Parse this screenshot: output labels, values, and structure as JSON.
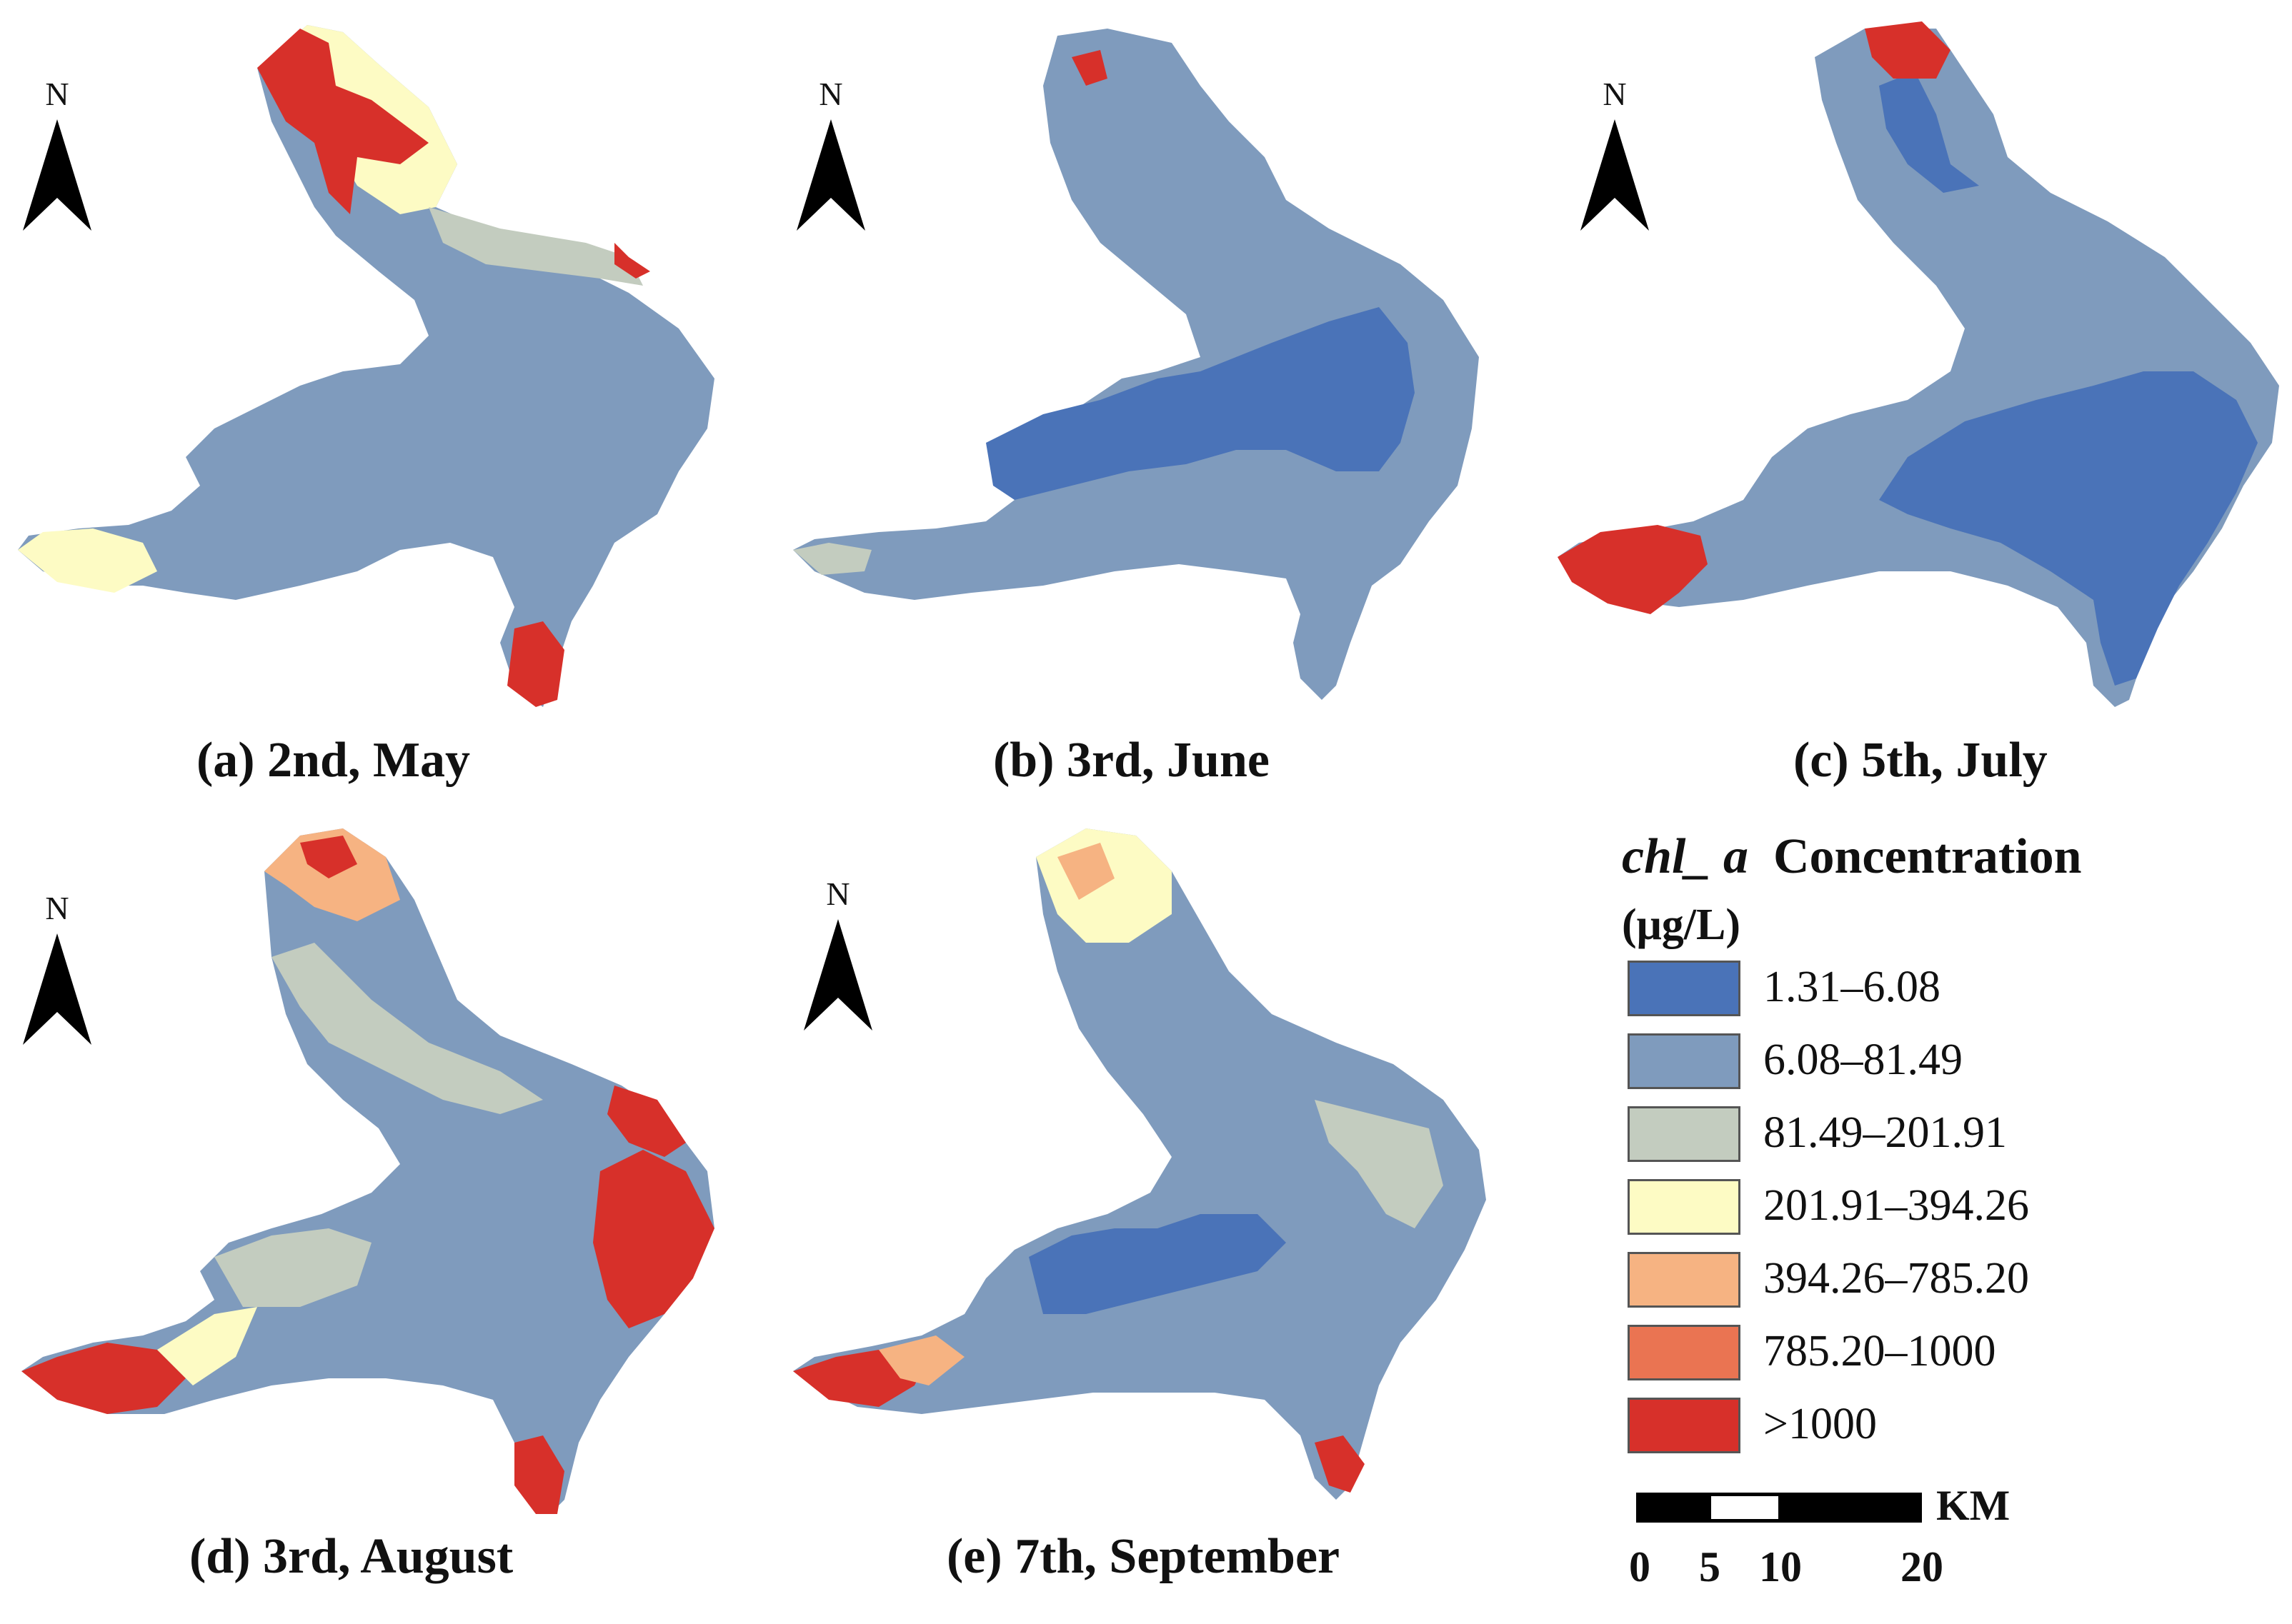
{
  "panels": [
    {
      "id": "a",
      "caption": "(a) 2nd, May",
      "north": "N"
    },
    {
      "id": "b",
      "caption": "(b) 3rd, June",
      "north": "N"
    },
    {
      "id": "c",
      "caption": "(c) 5th, July",
      "north": "N"
    },
    {
      "id": "d",
      "caption": "(d) 3rd, August",
      "north": "N"
    },
    {
      "id": "e",
      "caption": "(e) 7th, September",
      "north": "N"
    }
  ],
  "legend": {
    "title_var": "chl_ a",
    "title_rest": "Concentration",
    "unit": "(μg/L)",
    "classes": [
      {
        "label": "1.31–6.08",
        "color": "#4a73b8"
      },
      {
        "label": "6.08–81.49",
        "color": "#7f9bbd"
      },
      {
        "label": "81.49–201.91",
        "color": "#c3ccbf"
      },
      {
        "label": "201.91–394.26",
        "color": "#fdfbc4"
      },
      {
        "label": "394.26–785.20",
        "color": "#f6b382"
      },
      {
        "label": "785.20–1000",
        "color": "#ea7452"
      },
      {
        "label": ">1000",
        "color": "#d7302a"
      }
    ]
  },
  "scalebar": {
    "unit": "KM",
    "ticks": [
      "0",
      "5",
      "10",
      "20"
    ]
  }
}
